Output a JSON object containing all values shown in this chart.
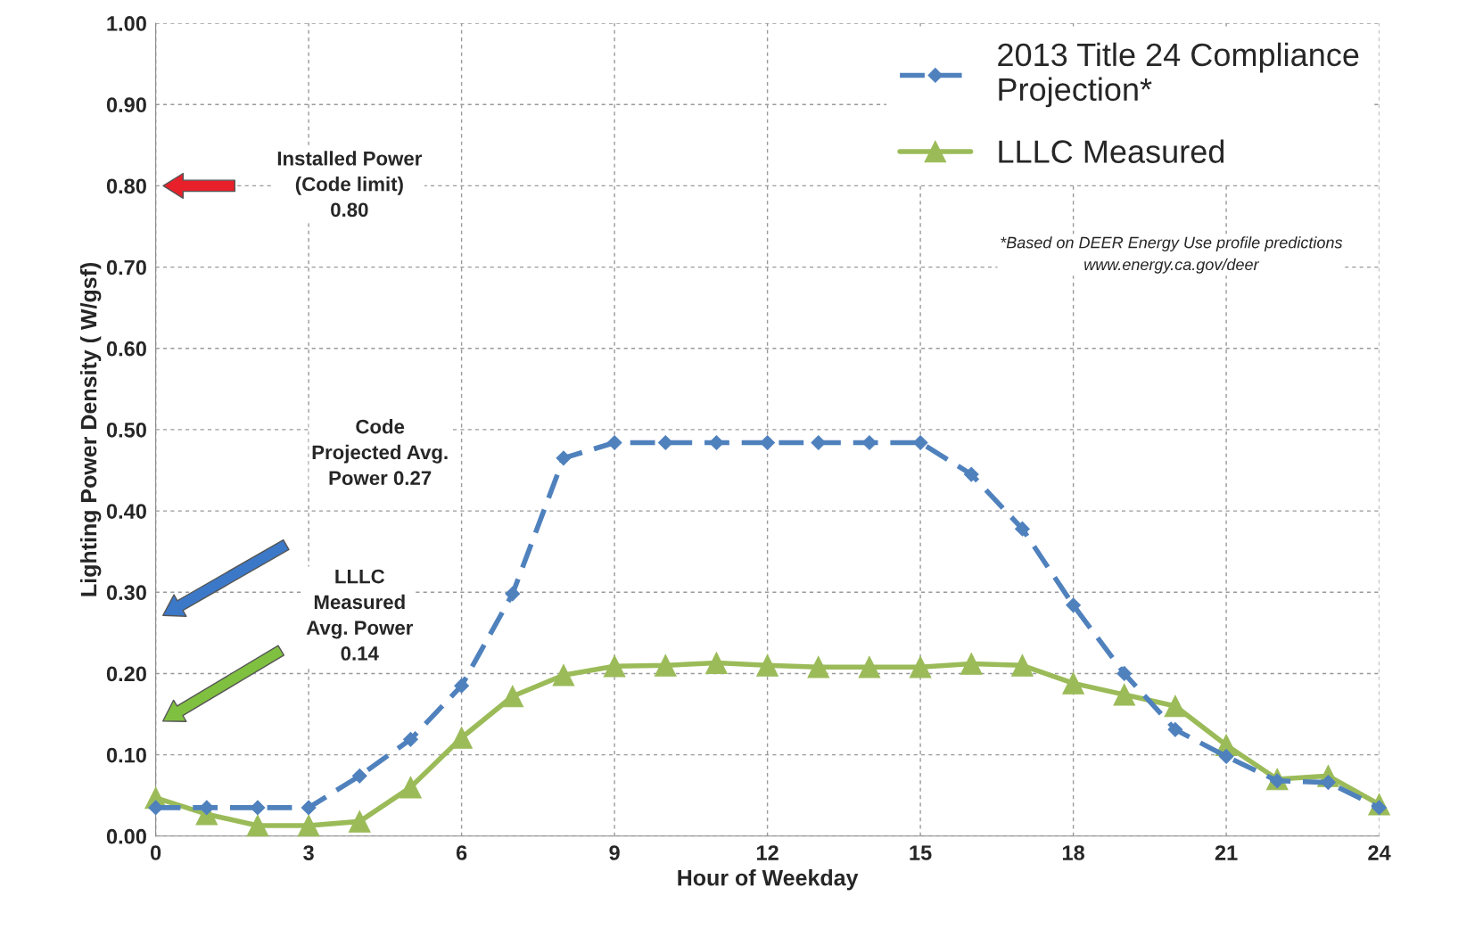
{
  "chart_data": {
    "type": "line",
    "xlabel": "Hour of Weekday",
    "ylabel": "Lighting Power Density ( W/gsf)",
    "x": [
      0,
      1,
      2,
      3,
      4,
      5,
      6,
      7,
      8,
      9,
      10,
      11,
      12,
      13,
      14,
      15,
      16,
      17,
      18,
      19,
      20,
      21,
      22,
      23,
      24
    ],
    "series": [
      {
        "name": "2013 Title 24 Compliance\nProjection*",
        "color": "#4f81bd",
        "marker": "diamond",
        "line_style": "dashed",
        "values": [
          0.035,
          0.035,
          0.035,
          0.035,
          0.074,
          0.119,
          0.185,
          0.298,
          0.465,
          0.484,
          0.484,
          0.484,
          0.484,
          0.484,
          0.484,
          0.484,
          0.445,
          0.378,
          0.284,
          0.2,
          0.131,
          0.098,
          0.068,
          0.066,
          0.035
        ]
      },
      {
        "name": "LLLC Measured",
        "color": "#9bbb59",
        "marker": "triangle",
        "line_style": "solid",
        "values": [
          0.047,
          0.027,
          0.013,
          0.013,
          0.018,
          0.06,
          0.121,
          0.172,
          0.198,
          0.209,
          0.21,
          0.213,
          0.21,
          0.208,
          0.208,
          0.208,
          0.212,
          0.21,
          0.188,
          0.174,
          0.16,
          0.112,
          0.07,
          0.074,
          0.039
        ]
      }
    ],
    "xlim": [
      0,
      24
    ],
    "xticks": [
      0,
      3,
      6,
      9,
      12,
      15,
      18,
      21,
      24
    ],
    "ylim": [
      0,
      1
    ],
    "yticks": [
      {
        "value": 0,
        "label": "0.00"
      },
      {
        "value": 0.1,
        "label": "0.10"
      },
      {
        "value": 0.2,
        "label": "0.20"
      },
      {
        "value": 0.3,
        "label": "0.30"
      },
      {
        "value": 0.4,
        "label": "0.40"
      },
      {
        "value": 0.5,
        "label": "0.50"
      },
      {
        "value": 0.6,
        "label": "0.60"
      },
      {
        "value": 0.7,
        "label": "0.70"
      },
      {
        "value": 0.8,
        "label": "0.80"
      },
      {
        "value": 0.9,
        "label": "0.90"
      },
      {
        "value": 1,
        "label": "1.00"
      }
    ],
    "grid": true,
    "legend": "top right",
    "annotations": [
      "Installed Power\n(Code limit)\n0.80",
      "Code\nProjected Avg.\nPower 0.27",
      "LLLC\nMeasured\nAvg. Power\n0.14",
      "*Based on DEER Energy Use profile predictions\nwww.energy.ca.gov/deer"
    ]
  }
}
